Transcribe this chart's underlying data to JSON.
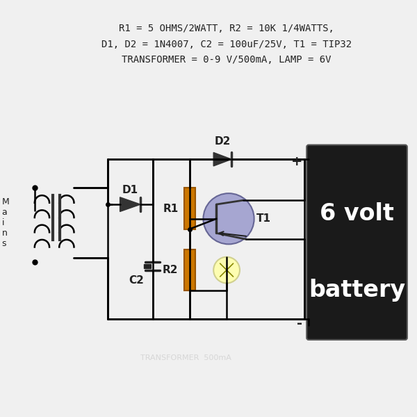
{
  "bg_color": "#f0f0f0",
  "title_lines": [
    "R1 = 5 OHMS/2WATT, R2 = 10K 1/4WATTS,",
    "D1, D2 = 1N4007, C2 = 100uF/25V, T1 = TIP32",
    "TRANSFORMER = 0-9 V/500mA, LAMP = 6V"
  ],
  "title_fontsize": 10,
  "wire_color": "#000000",
  "component_color": "#cc7700",
  "transistor_color": "#9999cc",
  "diode_color": "#000000",
  "battery_bg": "#1a1a1a",
  "battery_text": "#ffffff",
  "lamp_color": "#ffffaa",
  "label_fontsize": 11
}
